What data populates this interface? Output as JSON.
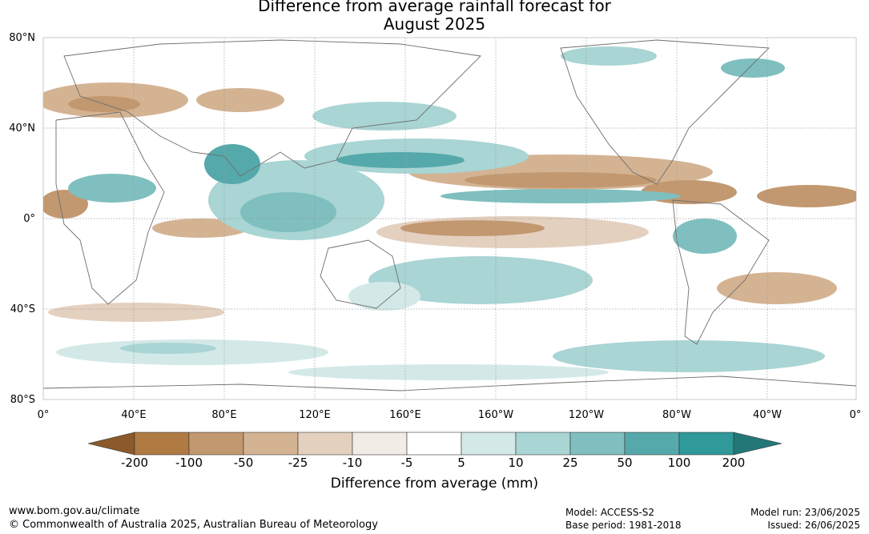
{
  "title_line1": "Difference from average rainfall forecast for",
  "title_line2": "August 2025",
  "lat_labels": [
    "80°N",
    "40°N",
    "0°",
    "40°S",
    "80°S"
  ],
  "lon_labels": [
    "0°",
    "40°E",
    "80°E",
    "120°E",
    "160°E",
    "160°W",
    "120°W",
    "80°W",
    "40°W",
    "0°"
  ],
  "legend": {
    "title": "Difference from average (mm)",
    "ticks": [
      "-200",
      "-100",
      "-50",
      "-25",
      "-10",
      "-5",
      "5",
      "10",
      "25",
      "50",
      "100",
      "200"
    ],
    "colors": [
      "#8b5a2b",
      "#b07a43",
      "#c29870",
      "#d4b393",
      "#e4d0bf",
      "#f2ece7",
      "#ffffff",
      "#d3e9e8",
      "#a9d5d4",
      "#7fbfbf",
      "#56a9aa",
      "#30999a",
      "#247777"
    ]
  },
  "footer": {
    "url": "www.bom.gov.au/climate",
    "copyright": "© Commonwealth of Australia 2025, Australian Bureau of Meteorology",
    "model": "Model: ACCESS-S2",
    "base_period": "Base period: 1981-2018",
    "model_run": "Model run: 23/06/2025",
    "issued": "Issued: 26/06/2025"
  }
}
